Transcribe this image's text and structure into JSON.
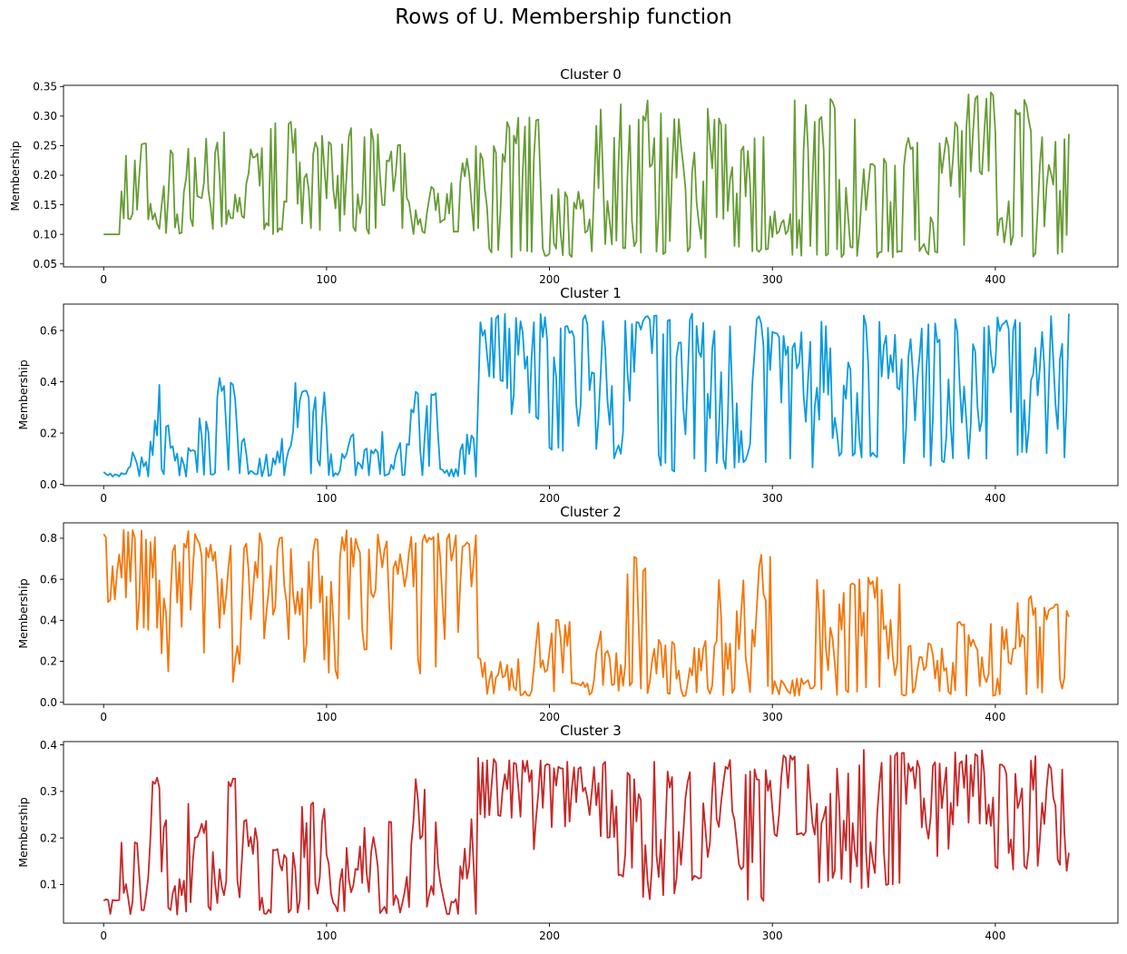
{
  "figure": {
    "suptitle": "Rows of U. Membership function"
  },
  "chart_data": [
    {
      "type": "line",
      "title": "Cluster 0",
      "xlabel": "",
      "ylabel": "Membership",
      "xlim": [
        -18,
        455
      ],
      "ylim": [
        0.045,
        0.352
      ],
      "xticks": [
        0,
        100,
        200,
        300,
        400
      ],
      "yticks": [
        0.05,
        0.1,
        0.15,
        0.2,
        0.25,
        0.3,
        0.35
      ],
      "color": "#669c35",
      "n_points": 434,
      "x_start": 0,
      "x_step": 1,
      "segments": [
        [
          0,
          0.1,
          0.1
        ],
        [
          8,
          0.12,
          0.26
        ],
        [
          20,
          0.1,
          0.19
        ],
        [
          30,
          0.1,
          0.25
        ],
        [
          45,
          0.1,
          0.28
        ],
        [
          60,
          0.1,
          0.26
        ],
        [
          75,
          0.1,
          0.3
        ],
        [
          90,
          0.1,
          0.28
        ],
        [
          105,
          0.1,
          0.28
        ],
        [
          125,
          0.1,
          0.26
        ],
        [
          140,
          0.1,
          0.19
        ],
        [
          160,
          0.1,
          0.25
        ],
        [
          170,
          0.06,
          0.25
        ],
        [
          180,
          0.06,
          0.3
        ],
        [
          200,
          0.06,
          0.18
        ],
        [
          218,
          0.07,
          0.32
        ],
        [
          240,
          0.06,
          0.33
        ],
        [
          260,
          0.06,
          0.32
        ],
        [
          280,
          0.07,
          0.27
        ],
        [
          290,
          0.07,
          0.27
        ],
        [
          300,
          0.06,
          0.14
        ],
        [
          310,
          0.06,
          0.33
        ],
        [
          330,
          0.06,
          0.31
        ],
        [
          340,
          0.06,
          0.23
        ],
        [
          360,
          0.06,
          0.28
        ],
        [
          380,
          0.07,
          0.3
        ],
        [
          388,
          0.2,
          0.34
        ],
        [
          400,
          0.08,
          0.34
        ],
        [
          415,
          0.06,
          0.27
        ],
        [
          434,
          0.06,
          0.16
        ]
      ],
      "seed": 11
    },
    {
      "type": "line",
      "title": "Cluster 1",
      "xlabel": "",
      "ylabel": "Membership",
      "xlim": [
        -18,
        455
      ],
      "ylim": [
        -0.005,
        0.703
      ],
      "xticks": [
        0,
        100,
        200,
        300,
        400
      ],
      "yticks": [
        0.0,
        0.2,
        0.4,
        0.6
      ],
      "color": "#0a9ade",
      "n_points": 434,
      "x_start": 0,
      "x_step": 1,
      "segments": [
        [
          0,
          0.03,
          0.05
        ],
        [
          10,
          0.03,
          0.19
        ],
        [
          22,
          0.03,
          0.41
        ],
        [
          30,
          0.03,
          0.15
        ],
        [
          40,
          0.03,
          0.27
        ],
        [
          50,
          0.03,
          0.42
        ],
        [
          60,
          0.03,
          0.2
        ],
        [
          70,
          0.03,
          0.18
        ],
        [
          85,
          0.03,
          0.41
        ],
        [
          100,
          0.03,
          0.12
        ],
        [
          110,
          0.03,
          0.21
        ],
        [
          130,
          0.03,
          0.17
        ],
        [
          138,
          0.03,
          0.39
        ],
        [
          150,
          0.03,
          0.06
        ],
        [
          160,
          0.03,
          0.22
        ],
        [
          167,
          0.03,
          0.03
        ],
        [
          168,
          0.4,
          0.67
        ],
        [
          180,
          0.25,
          0.67
        ],
        [
          200,
          0.13,
          0.67
        ],
        [
          225,
          0.1,
          0.67
        ],
        [
          250,
          0.05,
          0.67
        ],
        [
          280,
          0.05,
          0.67
        ],
        [
          300,
          0.06,
          0.62
        ],
        [
          320,
          0.08,
          0.67
        ],
        [
          350,
          0.07,
          0.67
        ],
        [
          380,
          0.08,
          0.67
        ],
        [
          400,
          0.09,
          0.67
        ],
        [
          434,
          0.12,
          0.67
        ]
      ],
      "seed": 23
    },
    {
      "type": "line",
      "title": "Cluster 2",
      "xlabel": "",
      "ylabel": "Membership",
      "xlim": [
        -18,
        455
      ],
      "ylim": [
        -0.01,
        0.875
      ],
      "xticks": [
        0,
        100,
        200,
        300,
        400
      ],
      "yticks": [
        0.0,
        0.2,
        0.4,
        0.6,
        0.8
      ],
      "color": "#f4760a",
      "n_points": 434,
      "x_start": 0,
      "x_step": 1,
      "segments": [
        [
          0,
          0.48,
          0.84
        ],
        [
          15,
          0.35,
          0.84
        ],
        [
          23,
          0.1,
          0.84
        ],
        [
          35,
          0.22,
          0.84
        ],
        [
          50,
          0.09,
          0.84
        ],
        [
          65,
          0.27,
          0.84
        ],
        [
          80,
          0.3,
          0.84
        ],
        [
          90,
          0.1,
          0.84
        ],
        [
          110,
          0.25,
          0.84
        ],
        [
          130,
          0.55,
          0.84
        ],
        [
          139,
          0.1,
          0.84
        ],
        [
          155,
          0.33,
          0.84
        ],
        [
          167,
          0.8,
          0.84
        ],
        [
          168,
          0.03,
          0.22
        ],
        [
          190,
          0.03,
          0.41
        ],
        [
          210,
          0.03,
          0.1
        ],
        [
          220,
          0.03,
          0.4
        ],
        [
          235,
          0.03,
          0.74
        ],
        [
          250,
          0.03,
          0.3
        ],
        [
          270,
          0.03,
          0.6
        ],
        [
          288,
          0.03,
          0.73
        ],
        [
          300,
          0.03,
          0.12
        ],
        [
          320,
          0.03,
          0.6
        ],
        [
          340,
          0.03,
          0.63
        ],
        [
          360,
          0.03,
          0.3
        ],
        [
          380,
          0.03,
          0.4
        ],
        [
          400,
          0.03,
          0.37
        ],
        [
          410,
          0.03,
          0.54
        ],
        [
          420,
          0.03,
          0.48
        ],
        [
          434,
          0.03,
          0.09
        ]
      ],
      "seed": 37
    },
    {
      "type": "line",
      "title": "Cluster 3",
      "xlabel": "",
      "ylabel": "Membership",
      "xlim": [
        -18,
        455
      ],
      "ylim": [
        0.017,
        0.407
      ],
      "xticks": [
        0,
        100,
        200,
        300,
        400
      ],
      "yticks": [
        0.1,
        0.2,
        0.3,
        0.4
      ],
      "color": "#c62828",
      "n_points": 434,
      "x_start": 0,
      "x_step": 1,
      "segments": [
        [
          0,
          0.035,
          0.07
        ],
        [
          8,
          0.035,
          0.21
        ],
        [
          22,
          0.035,
          0.33
        ],
        [
          30,
          0.035,
          0.12
        ],
        [
          38,
          0.035,
          0.28
        ],
        [
          50,
          0.035,
          0.34
        ],
        [
          60,
          0.035,
          0.24
        ],
        [
          70,
          0.035,
          0.18
        ],
        [
          88,
          0.035,
          0.3
        ],
        [
          100,
          0.035,
          0.18
        ],
        [
          115,
          0.035,
          0.24
        ],
        [
          130,
          0.035,
          0.12
        ],
        [
          138,
          0.035,
          0.34
        ],
        [
          150,
          0.035,
          0.07
        ],
        [
          160,
          0.035,
          0.27
        ],
        [
          167,
          0.035,
          0.04
        ],
        [
          168,
          0.24,
          0.38
        ],
        [
          190,
          0.16,
          0.37
        ],
        [
          210,
          0.2,
          0.37
        ],
        [
          230,
          0.1,
          0.37
        ],
        [
          240,
          0.06,
          0.37
        ],
        [
          260,
          0.1,
          0.37
        ],
        [
          285,
          0.06,
          0.35
        ],
        [
          300,
          0.2,
          0.38
        ],
        [
          320,
          0.1,
          0.37
        ],
        [
          340,
          0.09,
          0.39
        ],
        [
          360,
          0.16,
          0.37
        ],
        [
          380,
          0.22,
          0.39
        ],
        [
          400,
          0.13,
          0.37
        ],
        [
          410,
          0.12,
          0.38
        ],
        [
          434,
          0.24,
          0.32
        ]
      ],
      "seed": 53
    }
  ]
}
